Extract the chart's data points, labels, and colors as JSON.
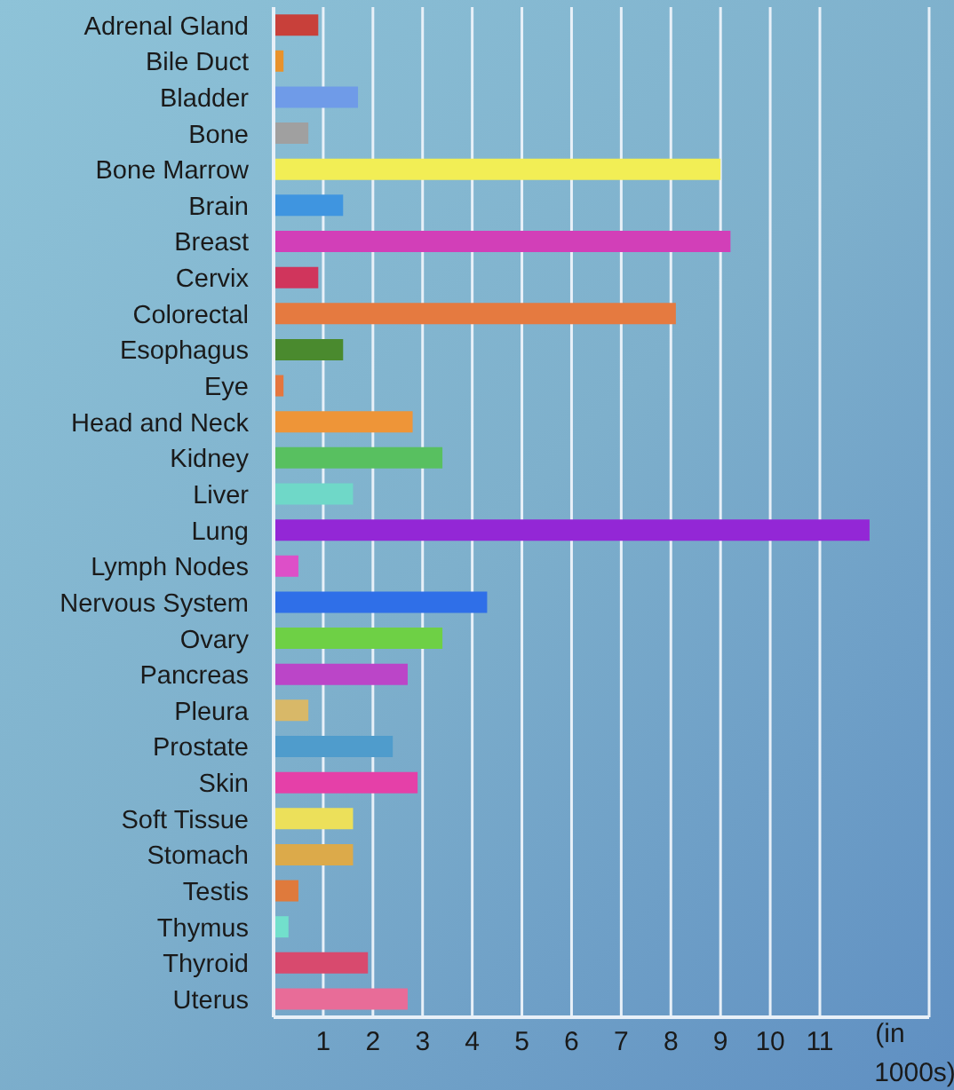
{
  "chart_data": {
    "type": "bar",
    "orientation": "horizontal",
    "xlabel": "(in 1000s)",
    "categories": [
      "Adrenal Gland",
      "Bile Duct",
      "Bladder",
      "Bone",
      "Bone Marrow",
      "Brain",
      "Breast",
      "Cervix",
      "Colorectal",
      "Esophagus",
      "Eye",
      "Head and Neck",
      "Kidney",
      "Liver",
      "Lung",
      "Lymph Nodes",
      "Nervous System",
      "Ovary",
      "Pancreas",
      "Pleura",
      "Prostate",
      "Skin",
      "Soft Tissue",
      "Stomach",
      "Testis",
      "Thymus",
      "Thyroid",
      "Uterus"
    ],
    "values": [
      0.9,
      0.2,
      1.7,
      0.7,
      9.0,
      1.4,
      9.2,
      0.9,
      8.1,
      1.4,
      0.2,
      2.8,
      3.4,
      1.6,
      12.0,
      0.5,
      4.3,
      3.4,
      2.7,
      0.7,
      2.4,
      2.9,
      1.6,
      1.6,
      0.5,
      0.3,
      1.9,
      2.7
    ],
    "colors": [
      "#c8403a",
      "#e8922c",
      "#6f9be8",
      "#a0a0a0",
      "#f2ee55",
      "#3f95e0",
      "#d23fb8",
      "#d0355c",
      "#e57a40",
      "#4a8a2e",
      "#e5763e",
      "#ee9538",
      "#58c060",
      "#6fd8c8",
      "#9327d6",
      "#dd4fc8",
      "#2f6fe8",
      "#6ed045",
      "#bb45c8",
      "#d8b868",
      "#4f9ccc",
      "#e540a8",
      "#ece05a",
      "#dcaa4a",
      "#df7a3c",
      "#72e0cc",
      "#d84a6e",
      "#e86c98"
    ],
    "xlim": [
      0,
      13.2
    ],
    "xticks": [
      1,
      2,
      3,
      4,
      5,
      6,
      7,
      8,
      9,
      10,
      11
    ],
    "grid": "x",
    "legend": false
  }
}
